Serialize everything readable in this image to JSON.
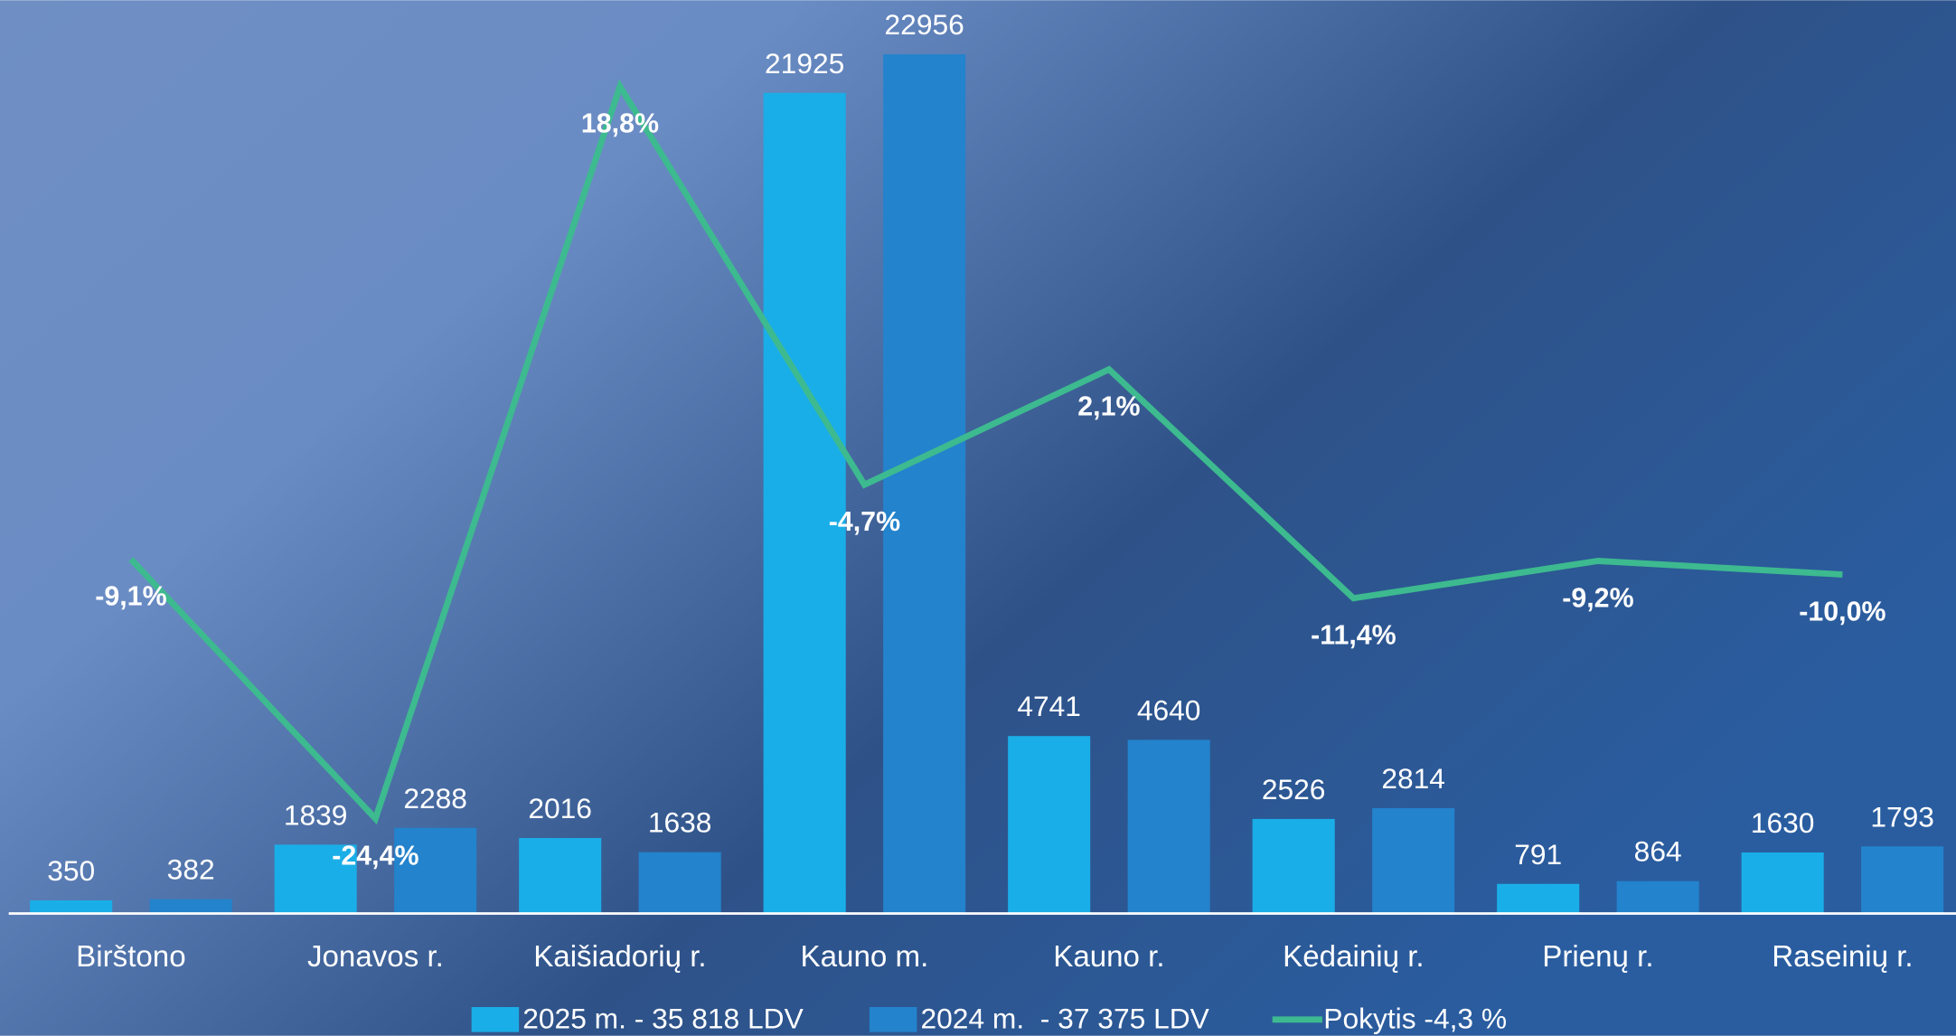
{
  "chart_data": {
    "type": "bar-line",
    "categories": [
      "Birštono",
      "Jonavos r.",
      "Kaišiadorių r.",
      "Kauno m.",
      "Kauno r.",
      "Kėdainių r.",
      "Prienų r.",
      "Raseinių r."
    ],
    "series": [
      {
        "name": "2025 m. - 35 818 LDV",
        "color": "#1aaee8",
        "values": [
          350,
          1839,
          2016,
          21925,
          4741,
          2526,
          791,
          1630
        ]
      },
      {
        "name": "2024 m.  - 37 375 LDV",
        "color": "#2383cc",
        "values": [
          382,
          2288,
          1638,
          22956,
          4640,
          2814,
          864,
          1793
        ]
      },
      {
        "name": "Pokytis -4,3 %",
        "color": "#3dba8f",
        "axis": "y2",
        "values": [
          -9.1,
          -24.4,
          18.8,
          -4.7,
          2.1,
          -11.4,
          -9.2,
          -10
        ],
        "value_labels": [
          "-9,1%",
          "-24,4%",
          "18,8%",
          "-4,7%",
          "2,1%",
          "-11,4%",
          "-9,2%",
          "-10,0%"
        ]
      }
    ],
    "ylim": [
      0,
      24000
    ],
    "y2lim": [
      -30,
      23
    ]
  }
}
